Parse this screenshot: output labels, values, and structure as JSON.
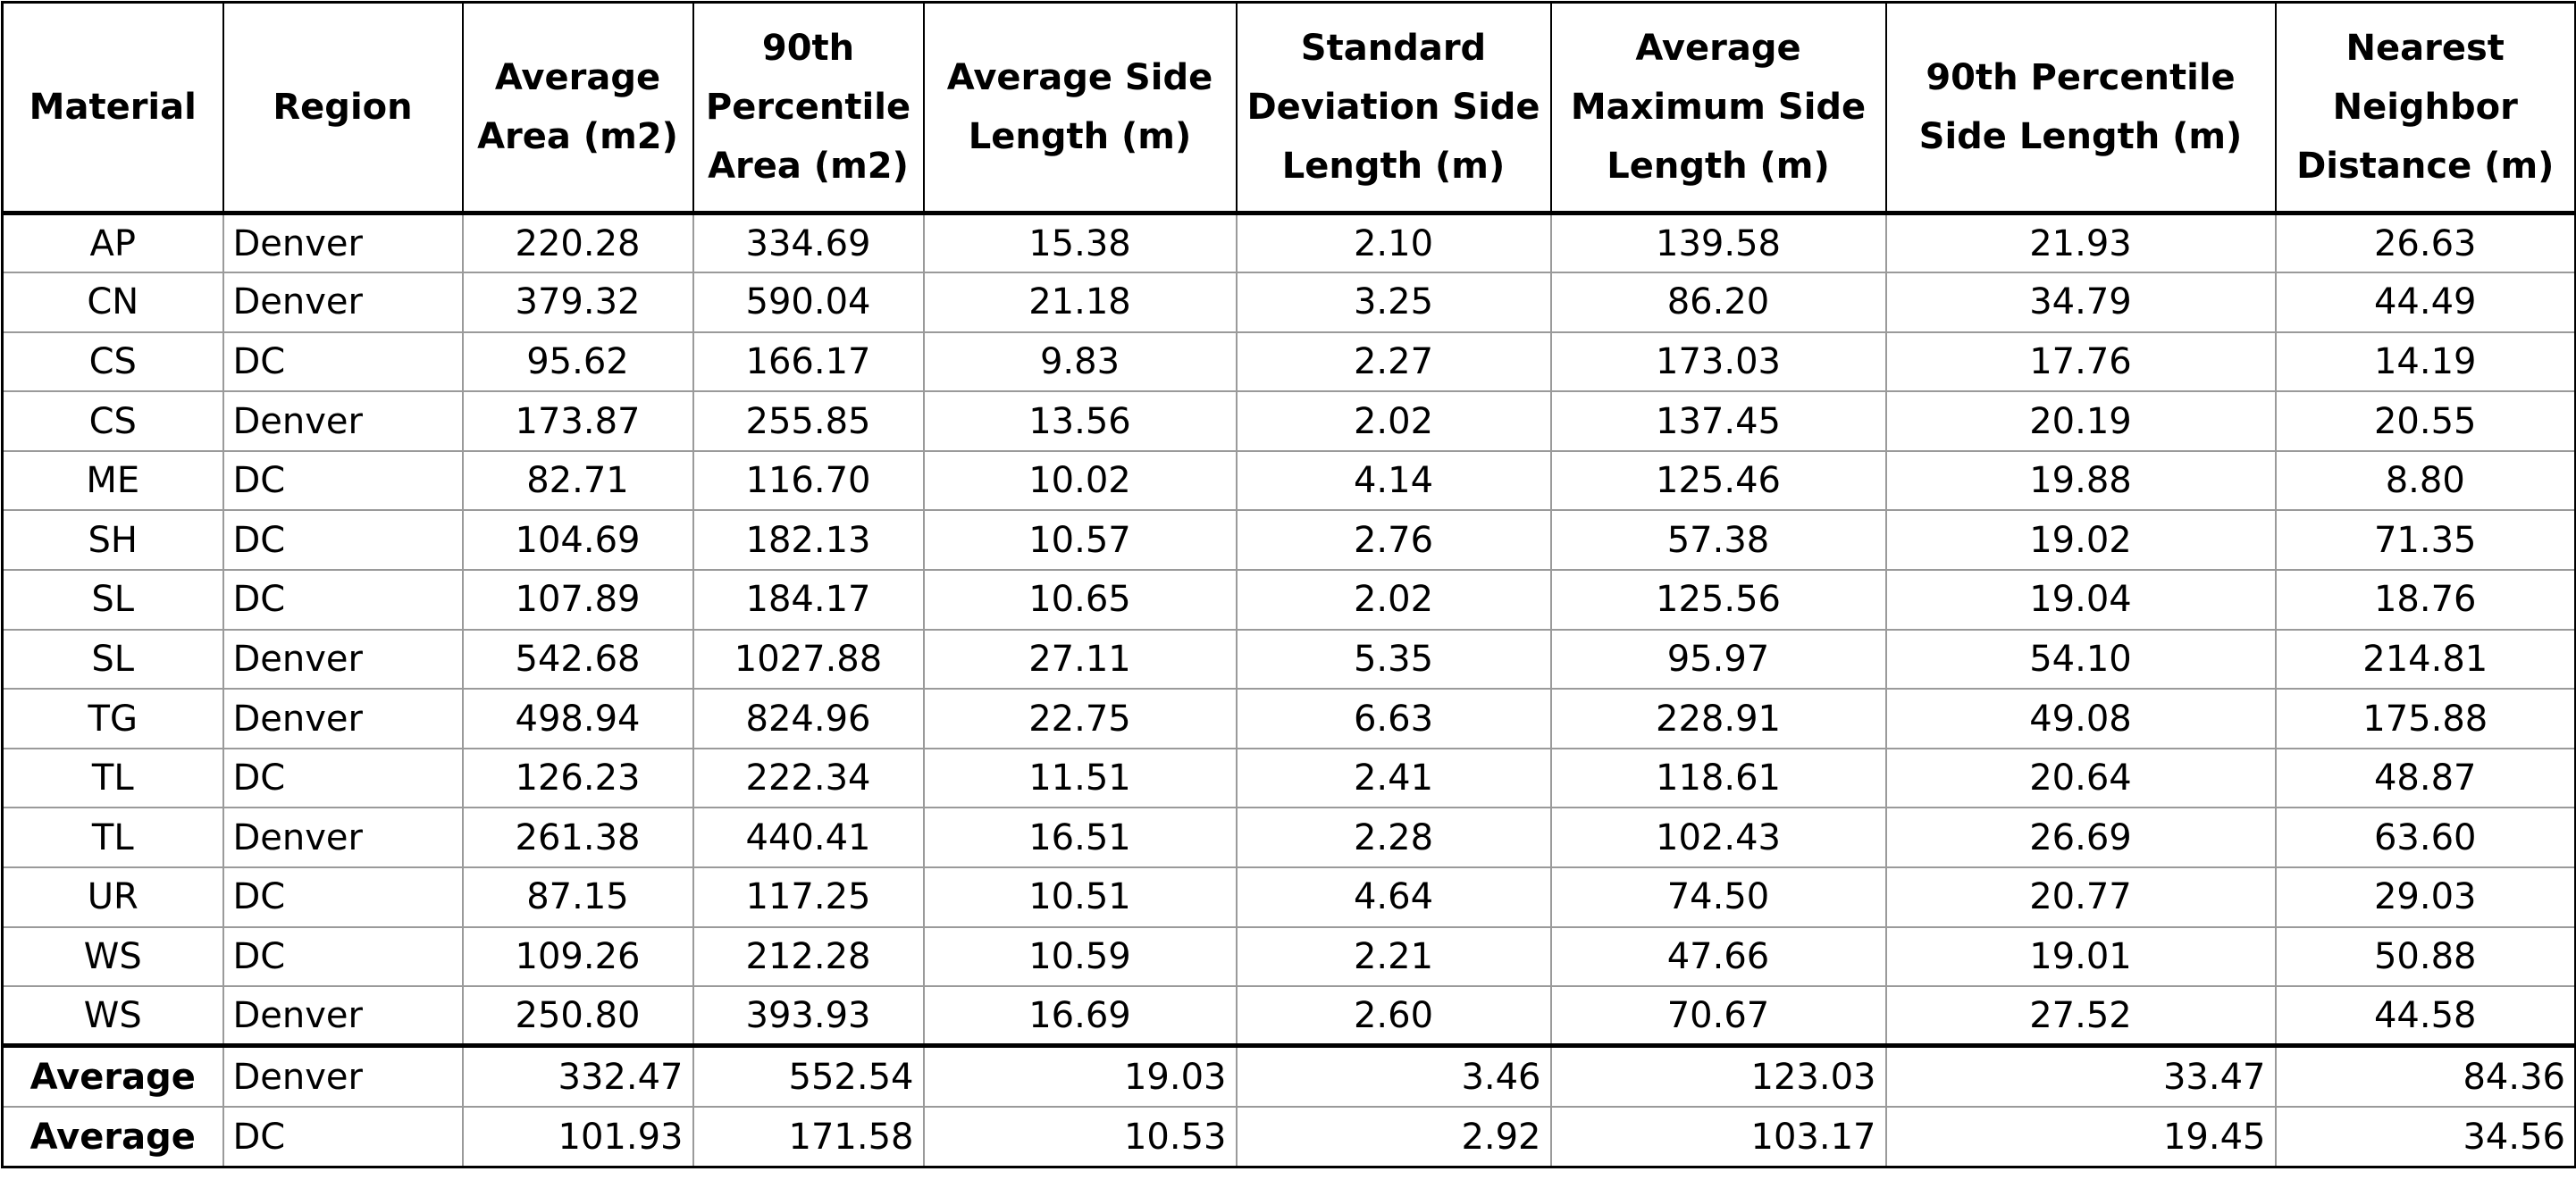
{
  "columns": [
    "Material",
    "Region",
    "Average Area (m2)",
    "90th Percentile Area (m2)",
    "Average Side Length (m)",
    "Standard Deviation Side Length (m)",
    "Average Maximum Side Length (m)",
    "90th Percentile Side Length (m)",
    "Nearest Neighbor Distance (m)"
  ],
  "rows": [
    [
      "AP",
      "Denver",
      "220.28",
      "334.69",
      "15.38",
      "2.10",
      "139.58",
      "21.93",
      "26.63"
    ],
    [
      "CN",
      "Denver",
      "379.32",
      "590.04",
      "21.18",
      "3.25",
      "86.20",
      "34.79",
      "44.49"
    ],
    [
      "CS",
      "DC",
      "95.62",
      "166.17",
      "9.83",
      "2.27",
      "173.03",
      "17.76",
      "14.19"
    ],
    [
      "CS",
      "Denver",
      "173.87",
      "255.85",
      "13.56",
      "2.02",
      "137.45",
      "20.19",
      "20.55"
    ],
    [
      "ME",
      "DC",
      "82.71",
      "116.70",
      "10.02",
      "4.14",
      "125.46",
      "19.88",
      "8.80"
    ],
    [
      "SH",
      "DC",
      "104.69",
      "182.13",
      "10.57",
      "2.76",
      "57.38",
      "19.02",
      "71.35"
    ],
    [
      "SL",
      "DC",
      "107.89",
      "184.17",
      "10.65",
      "2.02",
      "125.56",
      "19.04",
      "18.76"
    ],
    [
      "SL",
      "Denver",
      "542.68",
      "1027.88",
      "27.11",
      "5.35",
      "95.97",
      "54.10",
      "214.81"
    ],
    [
      "TG",
      "Denver",
      "498.94",
      "824.96",
      "22.75",
      "6.63",
      "228.91",
      "49.08",
      "175.88"
    ],
    [
      "TL",
      "DC",
      "126.23",
      "222.34",
      "11.51",
      "2.41",
      "118.61",
      "20.64",
      "48.87"
    ],
    [
      "TL",
      "Denver",
      "261.38",
      "440.41",
      "16.51",
      "2.28",
      "102.43",
      "26.69",
      "63.60"
    ],
    [
      "UR",
      "DC",
      "87.15",
      "117.25",
      "10.51",
      "4.64",
      "74.50",
      "20.77",
      "29.03"
    ],
    [
      "WS",
      "DC",
      "109.26",
      "212.28",
      "10.59",
      "2.21",
      "47.66",
      "19.01",
      "50.88"
    ],
    [
      "WS",
      "Denver",
      "250.80",
      "393.93",
      "16.69",
      "2.60",
      "70.67",
      "27.52",
      "44.58"
    ]
  ],
  "summary": [
    [
      "Average",
      "Denver",
      "332.47",
      "552.54",
      "19.03",
      "3.46",
      "123.03",
      "33.47",
      "84.36"
    ],
    [
      "Average",
      "DC",
      "101.93",
      "171.58",
      "10.53",
      "2.92",
      "103.17",
      "19.45",
      "34.56"
    ]
  ]
}
